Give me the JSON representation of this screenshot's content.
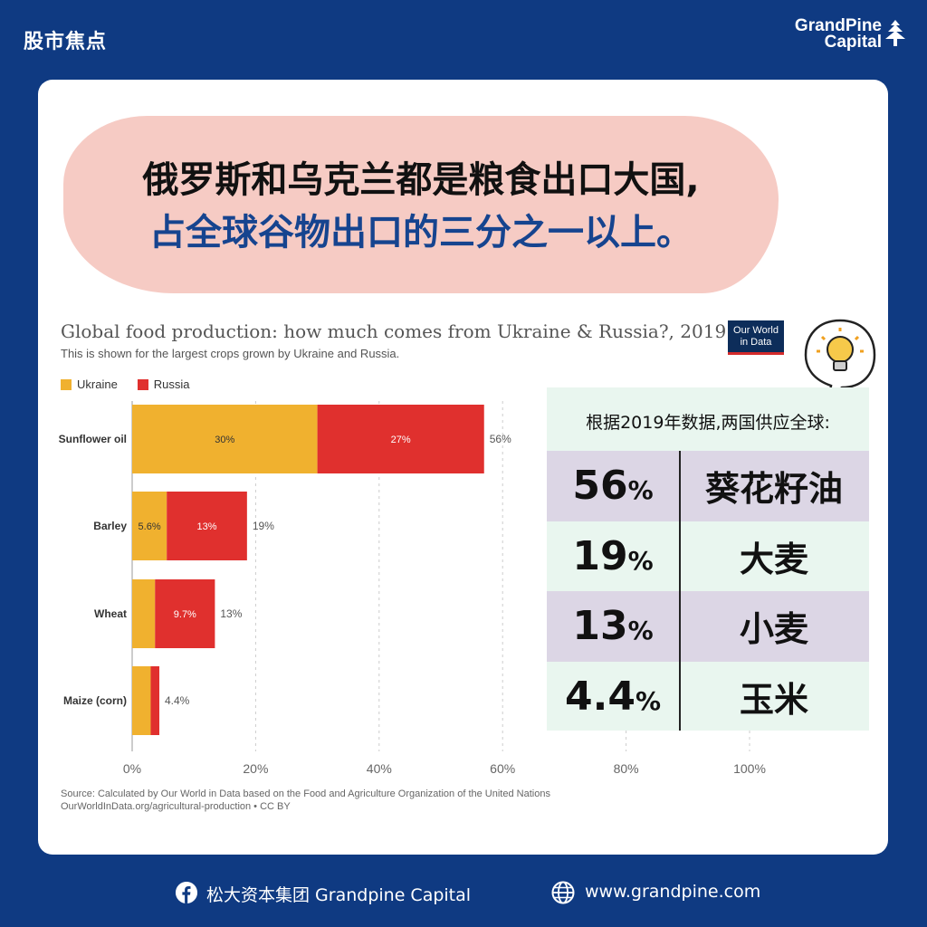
{
  "header": {
    "tag": "股市焦点",
    "brand_line1": "GrandPine",
    "brand_line2": "Capital"
  },
  "headline": {
    "line1": "俄罗斯和乌克兰都是粮食出口大国,",
    "line2": "占全球谷物出口的三分之一以上。"
  },
  "badge": {
    "line1": "Our World",
    "line2": "in Data"
  },
  "colors": {
    "ukraine": "#f0b12f",
    "russia": "#e0302e",
    "background": "#0f3a82",
    "accent_blue": "#16448f"
  },
  "chart_data": {
    "type": "bar",
    "orientation": "horizontal",
    "stacked": true,
    "title": "Global food production: how much comes from Ukraine & Russia?, 2019",
    "subtitle": "This is shown for the largest crops grown by Ukraine and Russia.",
    "categories": [
      "Sunflower oil",
      "Barley",
      "Wheat",
      "Maize (corn)"
    ],
    "series": [
      {
        "name": "Ukraine",
        "values": [
          30,
          5.6,
          3.7,
          3.0
        ],
        "labels": [
          "30%",
          "5.6%",
          "",
          ""
        ]
      },
      {
        "name": "Russia",
        "values": [
          27,
          13,
          9.7,
          1.4
        ],
        "labels": [
          "27%",
          "13%",
          "9.7%",
          ""
        ]
      }
    ],
    "totals": [
      "56%",
      "19%",
      "13%",
      "4.4%"
    ],
    "x_ticks": [
      "0%",
      "20%",
      "40%",
      "60%",
      "80%",
      "100%"
    ],
    "xlim": [
      0,
      100
    ],
    "legend_position": "top-left",
    "source_line1": "Source: Calculated by Our World in Data based on the Food and Agriculture Organization of the United Nations",
    "source_line2": "OurWorldInData.org/agricultural-production • CC BY"
  },
  "summary_panel": {
    "heading": "根据2019年数据,两国供应全球:",
    "rows": [
      {
        "value": "56",
        "unit": "%",
        "crop": "葵花籽油"
      },
      {
        "value": "19",
        "unit": "%",
        "crop": "大麦"
      },
      {
        "value": "13",
        "unit": "%",
        "crop": "小麦"
      },
      {
        "value": "4.4",
        "unit": "%",
        "crop": "玉米"
      }
    ]
  },
  "footer": {
    "facebook_icon": "facebook-icon",
    "facebook_text": "松大资本集团 Grandpine Capital",
    "globe_icon": "globe-icon",
    "website": "www.grandpine.com"
  }
}
